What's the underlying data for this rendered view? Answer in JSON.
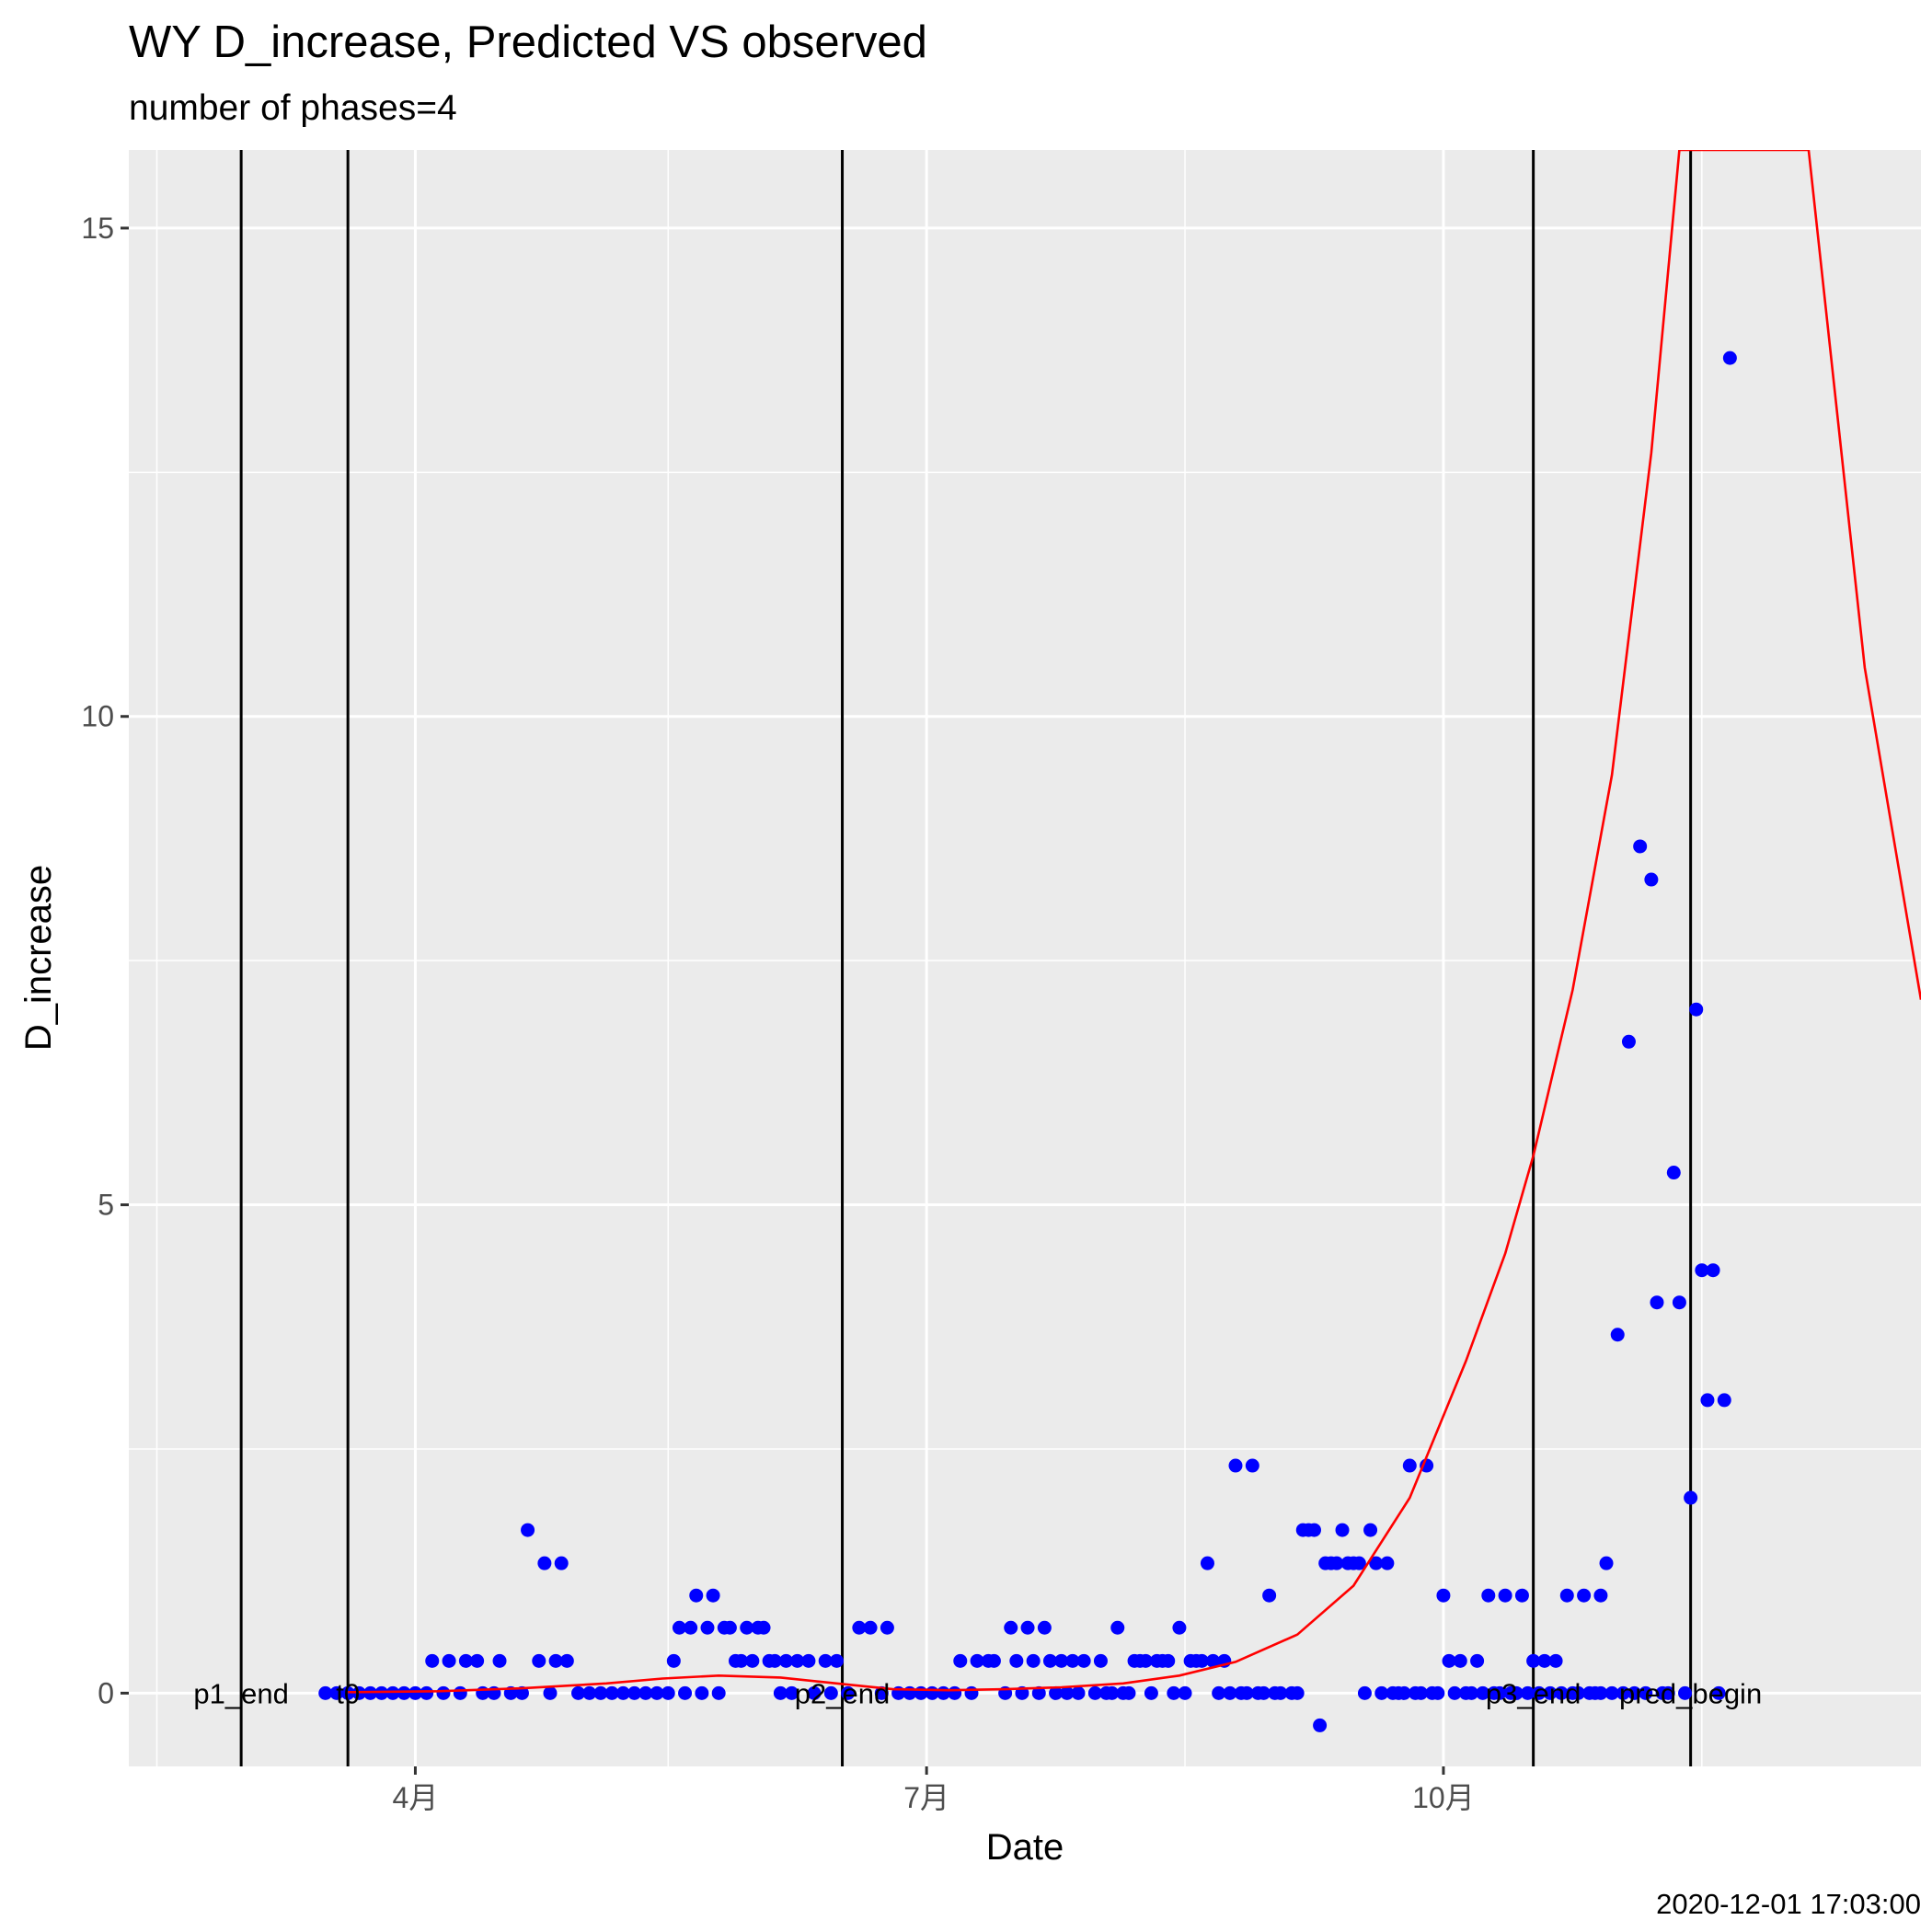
{
  "chart_data": {
    "type": "scatter",
    "title": "WY D_increase, Predicted VS observed",
    "subtitle": "number of phases=4",
    "xlabel": "Date",
    "ylabel": "D_increase",
    "caption": "2020-12-01 17:03:00",
    "x_type": "date",
    "xlim": [
      "2020-02-10",
      "2020-12-25"
    ],
    "ylim": [
      -0.75,
      15.8
    ],
    "x_ticks": [
      {
        "date": "2020-04-01",
        "label": "4月"
      },
      {
        "date": "2020-07-01",
        "label": "7月"
      },
      {
        "date": "2020-10-01",
        "label": "10月"
      }
    ],
    "x_minor_ticks": [
      "2020-02-15",
      "2020-05-16",
      "2020-08-16",
      "2020-11-16"
    ],
    "y_ticks": [
      0,
      5,
      10,
      15
    ],
    "y_minor_ticks": [
      2.5,
      7.5,
      12.5
    ],
    "grid": true,
    "background": "#ebebeb",
    "point_color": "#0000ff",
    "line_color": "#ff0000",
    "vertical_lines": [
      {
        "date": "2020-03-01",
        "label": "p1_end"
      },
      {
        "date": "2020-03-20",
        "label": "t0"
      },
      {
        "date": "2020-06-16",
        "label": "p2_end"
      },
      {
        "date": "2020-10-17",
        "label": "p3_end"
      },
      {
        "date": "2020-11-14",
        "label": "pred_begin"
      }
    ],
    "series": [
      {
        "kind": "points",
        "points": [
          [
            "2020-03-16",
            0
          ],
          [
            "2020-03-18",
            0
          ],
          [
            "2020-03-20",
            0
          ],
          [
            "2020-03-22",
            0
          ],
          [
            "2020-03-24",
            0
          ],
          [
            "2020-03-26",
            0
          ],
          [
            "2020-03-28",
            0
          ],
          [
            "2020-03-30",
            0
          ],
          [
            "2020-04-01",
            0
          ],
          [
            "2020-04-03",
            0
          ],
          [
            "2020-04-04",
            0.33
          ],
          [
            "2020-04-06",
            0
          ],
          [
            "2020-04-07",
            0.33
          ],
          [
            "2020-04-09",
            0
          ],
          [
            "2020-04-10",
            0.33
          ],
          [
            "2020-04-12",
            0.33
          ],
          [
            "2020-04-13",
            0
          ],
          [
            "2020-04-15",
            0
          ],
          [
            "2020-04-16",
            0.33
          ],
          [
            "2020-04-18",
            0
          ],
          [
            "2020-04-20",
            0
          ],
          [
            "2020-04-21",
            1.67
          ],
          [
            "2020-04-23",
            0.33
          ],
          [
            "2020-04-24",
            1.33
          ],
          [
            "2020-04-25",
            0
          ],
          [
            "2020-04-26",
            0.33
          ],
          [
            "2020-04-27",
            1.33
          ],
          [
            "2020-04-28",
            0.33
          ],
          [
            "2020-04-30",
            0
          ],
          [
            "2020-05-02",
            0
          ],
          [
            "2020-05-04",
            0
          ],
          [
            "2020-05-06",
            0
          ],
          [
            "2020-05-08",
            0
          ],
          [
            "2020-05-10",
            0
          ],
          [
            "2020-05-12",
            0
          ],
          [
            "2020-05-14",
            0
          ],
          [
            "2020-05-16",
            0
          ],
          [
            "2020-05-17",
            0.33
          ],
          [
            "2020-05-18",
            0.67
          ],
          [
            "2020-05-19",
            0
          ],
          [
            "2020-05-20",
            0.67
          ],
          [
            "2020-05-21",
            1
          ],
          [
            "2020-05-22",
            0
          ],
          [
            "2020-05-23",
            0.67
          ],
          [
            "2020-05-24",
            1
          ],
          [
            "2020-05-25",
            0
          ],
          [
            "2020-05-26",
            0.67
          ],
          [
            "2020-05-27",
            0.67
          ],
          [
            "2020-05-28",
            0.33
          ],
          [
            "2020-05-29",
            0.33
          ],
          [
            "2020-05-30",
            0.67
          ],
          [
            "2020-05-31",
            0.33
          ],
          [
            "2020-06-01",
            0.67
          ],
          [
            "2020-06-02",
            0.67
          ],
          [
            "2020-06-03",
            0.33
          ],
          [
            "2020-06-04",
            0.33
          ],
          [
            "2020-06-05",
            0
          ],
          [
            "2020-06-06",
            0.33
          ],
          [
            "2020-06-07",
            0
          ],
          [
            "2020-06-08",
            0.33
          ],
          [
            "2020-06-10",
            0.33
          ],
          [
            "2020-06-11",
            0
          ],
          [
            "2020-06-13",
            0.33
          ],
          [
            "2020-06-14",
            0
          ],
          [
            "2020-06-15",
            0.33
          ],
          [
            "2020-06-17",
            0
          ],
          [
            "2020-06-19",
            0.67
          ],
          [
            "2020-06-21",
            0.67
          ],
          [
            "2020-06-23",
            0
          ],
          [
            "2020-06-24",
            0.67
          ],
          [
            "2020-06-26",
            0
          ],
          [
            "2020-06-28",
            0
          ],
          [
            "2020-06-30",
            0
          ],
          [
            "2020-07-02",
            0
          ],
          [
            "2020-07-04",
            0
          ],
          [
            "2020-07-06",
            0
          ],
          [
            "2020-07-07",
            0.33
          ],
          [
            "2020-07-09",
            0
          ],
          [
            "2020-07-10",
            0.33
          ],
          [
            "2020-07-12",
            0.33
          ],
          [
            "2020-07-13",
            0.33
          ],
          [
            "2020-07-15",
            0
          ],
          [
            "2020-07-16",
            0.67
          ],
          [
            "2020-07-17",
            0.33
          ],
          [
            "2020-07-18",
            0
          ],
          [
            "2020-07-19",
            0.67
          ],
          [
            "2020-07-20",
            0.33
          ],
          [
            "2020-07-21",
            0
          ],
          [
            "2020-07-22",
            0.67
          ],
          [
            "2020-07-23",
            0.33
          ],
          [
            "2020-07-24",
            0
          ],
          [
            "2020-07-25",
            0.33
          ],
          [
            "2020-07-26",
            0
          ],
          [
            "2020-07-27",
            0.33
          ],
          [
            "2020-07-28",
            0
          ],
          [
            "2020-07-29",
            0.33
          ],
          [
            "2020-07-31",
            0
          ],
          [
            "2020-08-01",
            0.33
          ],
          [
            "2020-08-02",
            0
          ],
          [
            "2020-08-03",
            0
          ],
          [
            "2020-08-04",
            0.67
          ],
          [
            "2020-08-05",
            0
          ],
          [
            "2020-08-06",
            0
          ],
          [
            "2020-08-07",
            0.33
          ],
          [
            "2020-08-08",
            0.33
          ],
          [
            "2020-08-09",
            0.33
          ],
          [
            "2020-08-10",
            0
          ],
          [
            "2020-08-11",
            0.33
          ],
          [
            "2020-08-12",
            0.33
          ],
          [
            "2020-08-13",
            0.33
          ],
          [
            "2020-08-14",
            0
          ],
          [
            "2020-08-15",
            0.67
          ],
          [
            "2020-08-16",
            0
          ],
          [
            "2020-08-17",
            0.33
          ],
          [
            "2020-08-18",
            0.33
          ],
          [
            "2020-08-19",
            0.33
          ],
          [
            "2020-08-20",
            1.33
          ],
          [
            "2020-08-21",
            0.33
          ],
          [
            "2020-08-22",
            0
          ],
          [
            "2020-08-23",
            0.33
          ],
          [
            "2020-08-24",
            0
          ],
          [
            "2020-08-25",
            2.33
          ],
          [
            "2020-08-26",
            0
          ],
          [
            "2020-08-27",
            0
          ],
          [
            "2020-08-28",
            2.33
          ],
          [
            "2020-08-29",
            0
          ],
          [
            "2020-08-30",
            0
          ],
          [
            "2020-08-31",
            1
          ],
          [
            "2020-09-01",
            0
          ],
          [
            "2020-09-02",
            0
          ],
          [
            "2020-09-04",
            0
          ],
          [
            "2020-09-05",
            0
          ],
          [
            "2020-09-06",
            1.67
          ],
          [
            "2020-09-07",
            1.67
          ],
          [
            "2020-09-08",
            1.67
          ],
          [
            "2020-09-09",
            -0.33
          ],
          [
            "2020-09-10",
            1.33
          ],
          [
            "2020-09-11",
            1.33
          ],
          [
            "2020-09-12",
            1.33
          ],
          [
            "2020-09-13",
            1.67
          ],
          [
            "2020-09-14",
            1.33
          ],
          [
            "2020-09-15",
            1.33
          ],
          [
            "2020-09-16",
            1.33
          ],
          [
            "2020-09-17",
            0
          ],
          [
            "2020-09-18",
            1.67
          ],
          [
            "2020-09-19",
            1.33
          ],
          [
            "2020-09-20",
            0
          ],
          [
            "2020-09-21",
            1.33
          ],
          [
            "2020-09-22",
            0
          ],
          [
            "2020-09-23",
            0
          ],
          [
            "2020-09-24",
            0
          ],
          [
            "2020-09-25",
            2.33
          ],
          [
            "2020-09-26",
            0
          ],
          [
            "2020-09-27",
            0
          ],
          [
            "2020-09-28",
            2.33
          ],
          [
            "2020-09-29",
            0
          ],
          [
            "2020-09-30",
            0
          ],
          [
            "2020-10-01",
            1
          ],
          [
            "2020-10-02",
            0.33
          ],
          [
            "2020-10-03",
            0
          ],
          [
            "2020-10-04",
            0.33
          ],
          [
            "2020-10-05",
            0
          ],
          [
            "2020-10-06",
            0
          ],
          [
            "2020-10-07",
            0.33
          ],
          [
            "2020-10-08",
            0
          ],
          [
            "2020-10-09",
            1
          ],
          [
            "2020-10-10",
            0
          ],
          [
            "2020-10-11",
            0
          ],
          [
            "2020-10-12",
            1
          ],
          [
            "2020-10-13",
            0
          ],
          [
            "2020-10-14",
            0
          ],
          [
            "2020-10-15",
            1
          ],
          [
            "2020-10-16",
            0
          ],
          [
            "2020-10-17",
            0.33
          ],
          [
            "2020-10-18",
            0
          ],
          [
            "2020-10-19",
            0.33
          ],
          [
            "2020-10-20",
            0
          ],
          [
            "2020-10-21",
            0.33
          ],
          [
            "2020-10-22",
            0
          ],
          [
            "2020-10-23",
            1
          ],
          [
            "2020-10-24",
            0
          ],
          [
            "2020-10-25",
            0
          ],
          [
            "2020-10-26",
            1
          ],
          [
            "2020-10-27",
            0
          ],
          [
            "2020-10-28",
            0
          ],
          [
            "2020-10-29",
            1
          ],
          [
            "2020-10-29",
            0
          ],
          [
            "2020-10-30",
            1.33
          ],
          [
            "2020-10-31",
            0
          ],
          [
            "2020-11-01",
            3.67
          ],
          [
            "2020-11-02",
            0
          ],
          [
            "2020-11-03",
            6.67
          ],
          [
            "2020-11-04",
            0
          ],
          [
            "2020-11-05",
            8.67
          ],
          [
            "2020-11-06",
            0
          ],
          [
            "2020-11-07",
            8.33
          ],
          [
            "2020-11-08",
            4
          ],
          [
            "2020-11-09",
            0
          ],
          [
            "2020-11-10",
            0
          ],
          [
            "2020-11-11",
            5.33
          ],
          [
            "2020-11-12",
            4
          ],
          [
            "2020-11-13",
            0
          ],
          [
            "2020-11-14",
            2
          ],
          [
            "2020-11-15",
            7
          ],
          [
            "2020-11-16",
            4.33
          ],
          [
            "2020-11-17",
            3
          ],
          [
            "2020-11-18",
            4.33
          ],
          [
            "2020-11-19",
            0
          ],
          [
            "2020-11-20",
            3
          ],
          [
            "2020-11-21",
            13.67
          ]
        ]
      },
      {
        "kind": "line",
        "points": [
          [
            "2020-03-20",
            0.01
          ],
          [
            "2020-04-05",
            0.02
          ],
          [
            "2020-04-20",
            0.05
          ],
          [
            "2020-05-05",
            0.1
          ],
          [
            "2020-05-15",
            0.15
          ],
          [
            "2020-05-25",
            0.18
          ],
          [
            "2020-06-05",
            0.16
          ],
          [
            "2020-06-15",
            0.1
          ],
          [
            "2020-06-25",
            0.04
          ],
          [
            "2020-07-05",
            0.03
          ],
          [
            "2020-07-15",
            0.04
          ],
          [
            "2020-07-25",
            0.06
          ],
          [
            "2020-08-05",
            0.1
          ],
          [
            "2020-08-15",
            0.18
          ],
          [
            "2020-08-25",
            0.32
          ],
          [
            "2020-09-05",
            0.6
          ],
          [
            "2020-09-15",
            1.1
          ],
          [
            "2020-09-25",
            2.0
          ],
          [
            "2020-10-05",
            3.4
          ],
          [
            "2020-10-12",
            4.5
          ],
          [
            "2020-10-17",
            5.5
          ],
          [
            "2020-10-24",
            7.2
          ],
          [
            "2020-10-31",
            9.4
          ],
          [
            "2020-11-07",
            12.7
          ],
          [
            "2020-11-12",
            15.8
          ],
          [
            "2020-12-05",
            15.8
          ],
          [
            "2020-12-15",
            10.5
          ],
          [
            "2020-12-25",
            7.1
          ]
        ]
      }
    ]
  }
}
